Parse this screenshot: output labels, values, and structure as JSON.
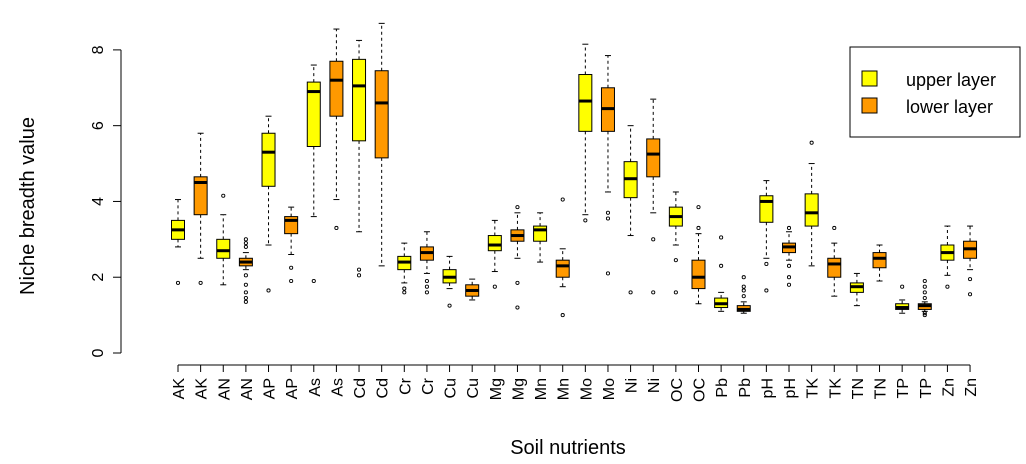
{
  "chart_data": {
    "type": "boxplot",
    "title": "",
    "xlabel": "Soil nutrients",
    "ylabel": "Niche breadth value",
    "ylim": [
      0,
      9
    ],
    "yticks": [
      0,
      2,
      4,
      6,
      8
    ],
    "grid": false,
    "legend_position": "top-right",
    "categories": [
      "AK",
      "AK",
      "AN",
      "AN",
      "AP",
      "AP",
      "As",
      "As",
      "Cd",
      "Cd",
      "Cr",
      "Cr",
      "Cu",
      "Cu",
      "Mg",
      "Mg",
      "Mn",
      "Mn",
      "Mo",
      "Mo",
      "Ni",
      "Ni",
      "OC",
      "OC",
      "Pb",
      "Pb",
      "pH",
      "pH",
      "TK",
      "TK",
      "TN",
      "TN",
      "TP",
      "TP",
      "Zn",
      "Zn"
    ],
    "series": [
      {
        "name": "upper layer",
        "color": "#FFFF00"
      },
      {
        "name": "lower layer",
        "color": "#FF9900"
      }
    ],
    "boxes": [
      {
        "label": "AK",
        "series": 0,
        "min": 2.8,
        "q1": 3.0,
        "median": 3.25,
        "q3": 3.5,
        "max": 4.05,
        "outliers": [
          1.85
        ]
      },
      {
        "label": "AK",
        "series": 1,
        "min": 2.5,
        "q1": 3.65,
        "median": 4.5,
        "q3": 4.65,
        "max": 5.8,
        "outliers": [
          1.85
        ]
      },
      {
        "label": "AN",
        "series": 0,
        "min": 1.8,
        "q1": 2.5,
        "median": 2.7,
        "q3": 3.0,
        "max": 3.65,
        "outliers": [
          4.15
        ]
      },
      {
        "label": "AN",
        "series": 1,
        "min": 2.2,
        "q1": 2.3,
        "median": 2.4,
        "q3": 2.5,
        "max": 2.65,
        "outliers": [
          1.35,
          1.45,
          1.6,
          1.8,
          2.05,
          2.8,
          2.9,
          3.0
        ]
      },
      {
        "label": "AP",
        "series": 0,
        "min": 2.85,
        "q1": 4.4,
        "median": 5.3,
        "q3": 5.8,
        "max": 6.25,
        "outliers": [
          1.65
        ]
      },
      {
        "label": "AP",
        "series": 1,
        "min": 2.6,
        "q1": 3.15,
        "median": 3.5,
        "q3": 3.6,
        "max": 3.85,
        "outliers": [
          1.9,
          2.25
        ]
      },
      {
        "label": "As",
        "series": 0,
        "min": 3.6,
        "q1": 5.45,
        "median": 6.9,
        "q3": 7.15,
        "max": 7.6,
        "outliers": [
          1.9
        ]
      },
      {
        "label": "As",
        "series": 1,
        "min": 4.05,
        "q1": 6.25,
        "median": 7.2,
        "q3": 7.7,
        "max": 8.55,
        "outliers": [
          3.3
        ]
      },
      {
        "label": "Cd",
        "series": 0,
        "min": 3.2,
        "q1": 5.6,
        "median": 7.05,
        "q3": 7.75,
        "max": 8.25,
        "outliers": [
          2.05,
          2.2
        ]
      },
      {
        "label": "Cd",
        "series": 1,
        "min": 2.3,
        "q1": 5.15,
        "median": 6.6,
        "q3": 7.45,
        "max": 8.7,
        "outliers": []
      },
      {
        "label": "Cr",
        "series": 0,
        "min": 1.85,
        "q1": 2.2,
        "median": 2.4,
        "q3": 2.55,
        "max": 2.9,
        "outliers": [
          1.6,
          1.7
        ]
      },
      {
        "label": "Cr",
        "series": 1,
        "min": 2.1,
        "q1": 2.45,
        "median": 2.65,
        "q3": 2.8,
        "max": 3.2,
        "outliers": [
          1.6,
          1.75,
          1.9
        ]
      },
      {
        "label": "Cu",
        "series": 0,
        "min": 1.7,
        "q1": 1.85,
        "median": 2.0,
        "q3": 2.2,
        "max": 2.55,
        "outliers": [
          1.25
        ]
      },
      {
        "label": "Cu",
        "series": 1,
        "min": 1.4,
        "q1": 1.5,
        "median": 1.65,
        "q3": 1.8,
        "max": 1.95,
        "outliers": []
      },
      {
        "label": "Mg",
        "series": 0,
        "min": 2.15,
        "q1": 2.7,
        "median": 2.85,
        "q3": 3.1,
        "max": 3.5,
        "outliers": [
          1.75
        ]
      },
      {
        "label": "Mg",
        "series": 1,
        "min": 2.5,
        "q1": 2.95,
        "median": 3.1,
        "q3": 3.25,
        "max": 3.7,
        "outliers": [
          1.2,
          1.85,
          3.85
        ]
      },
      {
        "label": "Mn",
        "series": 0,
        "min": 2.4,
        "q1": 2.95,
        "median": 3.25,
        "q3": 3.35,
        "max": 3.7,
        "outliers": []
      },
      {
        "label": "Mn",
        "series": 1,
        "min": 1.75,
        "q1": 2.0,
        "median": 2.3,
        "q3": 2.45,
        "max": 2.75,
        "outliers": [
          1.0,
          4.05
        ]
      },
      {
        "label": "Mo",
        "series": 0,
        "min": 3.65,
        "q1": 5.85,
        "median": 6.65,
        "q3": 7.35,
        "max": 8.15,
        "outliers": [
          3.5
        ]
      },
      {
        "label": "Mo",
        "series": 1,
        "min": 4.25,
        "q1": 5.85,
        "median": 6.45,
        "q3": 7.0,
        "max": 7.85,
        "outliers": [
          2.1,
          3.55,
          3.7
        ]
      },
      {
        "label": "Ni",
        "series": 0,
        "min": 3.1,
        "q1": 4.1,
        "median": 4.6,
        "q3": 5.05,
        "max": 6.0,
        "outliers": [
          1.6
        ]
      },
      {
        "label": "Ni",
        "series": 1,
        "min": 3.7,
        "q1": 4.65,
        "median": 5.25,
        "q3": 5.65,
        "max": 6.7,
        "outliers": [
          1.6,
          3.0
        ]
      },
      {
        "label": "OC",
        "series": 0,
        "min": 2.85,
        "q1": 3.35,
        "median": 3.6,
        "q3": 3.85,
        "max": 4.25,
        "outliers": [
          1.6,
          2.45
        ]
      },
      {
        "label": "OC",
        "series": 1,
        "min": 1.3,
        "q1": 1.7,
        "median": 2.0,
        "q3": 2.45,
        "max": 3.15,
        "outliers": [
          3.3,
          3.85
        ]
      },
      {
        "label": "Pb",
        "series": 0,
        "min": 1.1,
        "q1": 1.2,
        "median": 1.3,
        "q3": 1.45,
        "max": 1.6,
        "outliers": [
          2.3,
          3.05
        ]
      },
      {
        "label": "Pb",
        "series": 1,
        "min": 1.05,
        "q1": 1.1,
        "median": 1.15,
        "q3": 1.25,
        "max": 1.35,
        "outliers": [
          1.5,
          1.65,
          1.75,
          2.0
        ]
      },
      {
        "label": "pH",
        "series": 0,
        "min": 2.5,
        "q1": 3.45,
        "median": 4.0,
        "q3": 4.15,
        "max": 4.55,
        "outliers": [
          1.65,
          2.35
        ]
      },
      {
        "label": "pH",
        "series": 1,
        "min": 2.45,
        "q1": 2.65,
        "median": 2.8,
        "q3": 2.9,
        "max": 3.2,
        "outliers": [
          1.8,
          2.0,
          2.3,
          3.3
        ]
      },
      {
        "label": "TK",
        "series": 0,
        "min": 2.3,
        "q1": 3.35,
        "median": 3.7,
        "q3": 4.2,
        "max": 5.0,
        "outliers": [
          5.55
        ]
      },
      {
        "label": "TK",
        "series": 1,
        "min": 1.5,
        "q1": 2.0,
        "median": 2.35,
        "q3": 2.5,
        "max": 2.9,
        "outliers": [
          3.3
        ]
      },
      {
        "label": "TN",
        "series": 0,
        "min": 1.25,
        "q1": 1.6,
        "median": 1.75,
        "q3": 1.85,
        "max": 2.1,
        "outliers": []
      },
      {
        "label": "TN",
        "series": 1,
        "min": 1.9,
        "q1": 2.25,
        "median": 2.5,
        "q3": 2.65,
        "max": 2.85,
        "outliers": []
      },
      {
        "label": "TP",
        "series": 0,
        "min": 1.05,
        "q1": 1.15,
        "median": 1.2,
        "q3": 1.3,
        "max": 1.4,
        "outliers": [
          1.75
        ]
      },
      {
        "label": "TP",
        "series": 1,
        "min": 1.1,
        "q1": 1.15,
        "median": 1.25,
        "q3": 1.3,
        "max": 1.35,
        "outliers": [
          1.0,
          1.05,
          1.45,
          1.6,
          1.75,
          1.9
        ]
      },
      {
        "label": "Zn",
        "series": 0,
        "min": 2.05,
        "q1": 2.45,
        "median": 2.65,
        "q3": 2.85,
        "max": 3.35,
        "outliers": [
          1.75
        ]
      },
      {
        "label": "Zn",
        "series": 1,
        "min": 2.2,
        "q1": 2.5,
        "median": 2.75,
        "q3": 2.95,
        "max": 3.35,
        "outliers": [
          1.55,
          1.95
        ]
      }
    ]
  }
}
